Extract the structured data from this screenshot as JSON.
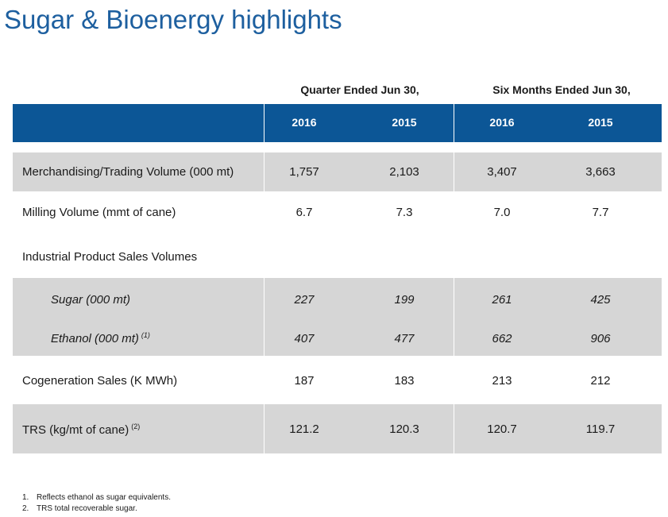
{
  "title": "Sugar & Bioenergy highlights",
  "periods": [
    {
      "label": "Quarter Ended Jun 30,"
    },
    {
      "label": "Six Months Ended Jun 30,"
    }
  ],
  "years": [
    "2016",
    "2015",
    "2016",
    "2015"
  ],
  "rows": [
    {
      "label": "Merchandising/Trading Volume (000 mt)",
      "values": [
        "1,757",
        "2,103",
        "3,407",
        "3,663"
      ]
    },
    {
      "label": "Milling Volume (mmt of cane)",
      "values": [
        "6.7",
        "7.3",
        "7.0",
        "7.7"
      ]
    },
    {
      "label": "Industrial Product Sales Volumes"
    },
    {
      "label": "Sugar (000 mt)",
      "values": [
        "227",
        "199",
        "261",
        "425"
      ]
    },
    {
      "label": "Ethanol (000 mt)",
      "note": "(1)",
      "values": [
        "407",
        "477",
        "662",
        "906"
      ]
    },
    {
      "label": "Cogeneration Sales (K MWh)",
      "values": [
        "187",
        "183",
        "213",
        "212"
      ]
    },
    {
      "label": "TRS (kg/mt of cane)",
      "note": "(2)",
      "values": [
        "121.2",
        "120.3",
        "120.7",
        "119.7"
      ]
    }
  ],
  "footnotes": [
    {
      "num": "1.",
      "text": "Reflects ethanol as sugar equivalents."
    },
    {
      "num": "2.",
      "text": "TRS total recoverable sugar."
    }
  ],
  "colors": {
    "title": "#1d5f9f",
    "header": "#0c5696",
    "shaded_row": "#d6d6d6"
  }
}
